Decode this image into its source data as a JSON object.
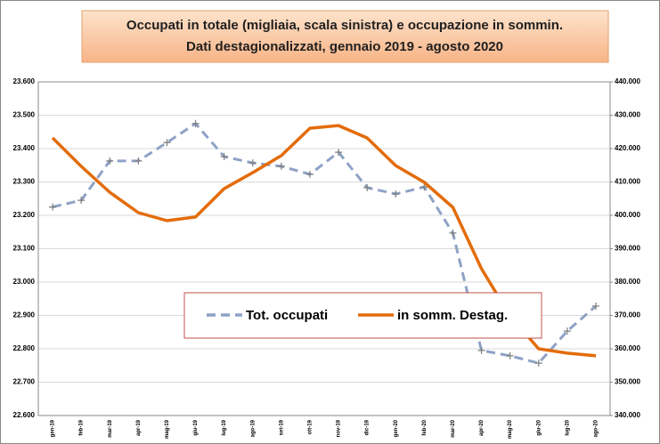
{
  "chart_data": {
    "type": "line",
    "title": "Occupati in  totale (migliaia, scala sinistra)  e occupazione in sommin.",
    "subtitle": "Dati destagionalizzati, gennaio 2019 - agosto 2020",
    "categories": [
      "gen-19",
      "feb-19",
      "mar-19",
      "apr-19",
      "mag-19",
      "giu-19",
      "lug-19",
      "ago-19",
      "set-19",
      "ott-19",
      "nov-19",
      "dic-19",
      "gen-20",
      "feb-20",
      "mar-20",
      "apr-20",
      "mag-20",
      "giu-20",
      "lug-20",
      "ago-20"
    ],
    "series": [
      {
        "name": "Tot. occupati",
        "color": "#8ea2c6",
        "dashed": true,
        "markers": true,
        "values": [
          23225,
          23245,
          23363,
          23363,
          23418,
          23475,
          23376,
          23357,
          23347,
          23323,
          23389,
          23283,
          23264,
          23285,
          23147,
          22795,
          22779,
          22757,
          22853,
          22928
        ]
      },
      {
        "name": "in somm. Destag.",
        "color": "#e36c0a",
        "axis": "y2",
        "values": [
          423200,
          414700,
          406900,
          400800,
          398400,
          399500,
          408000,
          412800,
          417900,
          426100,
          426900,
          423200,
          414900,
          409900,
          402400,
          384000,
          369900,
          360000,
          358700,
          357900
        ]
      }
    ],
    "ylim": [
      22600,
      23600
    ],
    "yticks": [
      {
        "value": 22600,
        "label": "22.600"
      },
      {
        "value": 22700,
        "label": "22.700"
      },
      {
        "value": 22800,
        "label": "22.800"
      },
      {
        "value": 22900,
        "label": "22.900"
      },
      {
        "value": 23000,
        "label": "23.000"
      },
      {
        "value": 23100,
        "label": "23.100"
      },
      {
        "value": 23200,
        "label": "23.200"
      },
      {
        "value": 23300,
        "label": "23.300"
      },
      {
        "value": 23400,
        "label": "23.400"
      },
      {
        "value": 23500,
        "label": "23.500"
      },
      {
        "value": 23600,
        "label": "23.600"
      }
    ],
    "y2lim": [
      340000,
      440000
    ],
    "y2ticks": [
      {
        "value": 340000,
        "label": "340.000"
      },
      {
        "value": 350000,
        "label": "350.000"
      },
      {
        "value": 360000,
        "label": "360.000"
      },
      {
        "value": 370000,
        "label": "370.000"
      },
      {
        "value": 380000,
        "label": "380.000"
      },
      {
        "value": 390000,
        "label": "390.000"
      },
      {
        "value": 400000,
        "label": "400.000"
      },
      {
        "value": 410000,
        "label": "410.000"
      },
      {
        "value": 420000,
        "label": "420.000"
      },
      {
        "value": 430000,
        "label": "430.000"
      },
      {
        "value": 440000,
        "label": "440.000"
      }
    ],
    "grid": true
  }
}
